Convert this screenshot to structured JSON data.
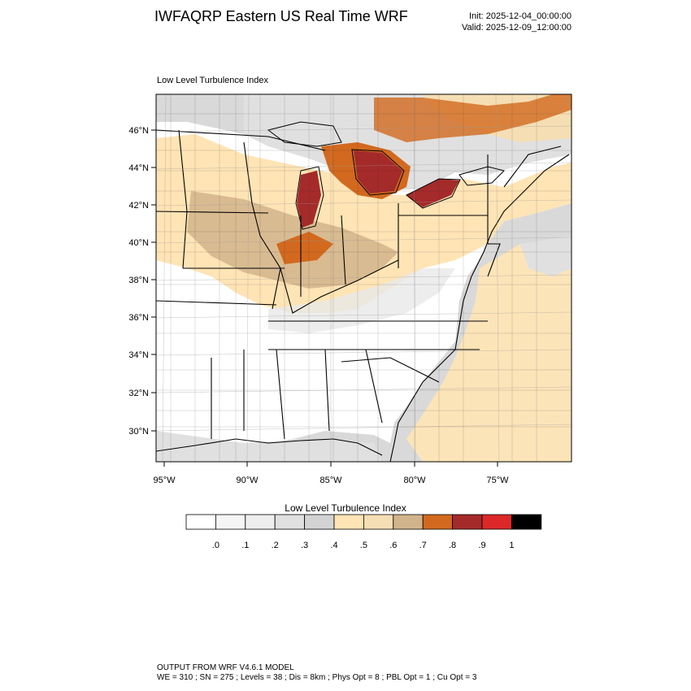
{
  "header": {
    "title": "IWFAQRP Eastern US Real Time WRF",
    "init": "Init: 2025-12-04_00:00:00",
    "valid": "Valid: 2025-12-09_12:00:00"
  },
  "plot": {
    "label": "Low Level Turbulence Index",
    "lat_labels": [
      "46°N",
      "44°N",
      "42°N",
      "40°N",
      "38°N",
      "36°N",
      "34°N",
      "32°N",
      "30°N"
    ],
    "lon_labels": [
      "95°W",
      "90°W",
      "85°W",
      "80°W",
      "75°W"
    ],
    "field_colors": {
      "water_low": "#d9d9d9",
      "land_low": "#ffffff",
      "mid": "#ffe4b5",
      "mid_high": "#d2b48c",
      "high": "#d2691e",
      "peak": "#a52a2a"
    }
  },
  "colorbar": {
    "title": "Low Level Turbulence Index",
    "ticks": [
      ".0",
      ".1",
      ".2",
      ".3",
      ".4",
      ".5",
      ".6",
      ".7",
      ".8",
      ".9",
      "1"
    ],
    "colors": [
      "#ffffff",
      "#f5f5f5",
      "#eeeeee",
      "#e0e0e0",
      "#d3d3d3",
      "#ffe4b5",
      "#f5deb3",
      "#d2b48c",
      "#d2691e",
      "#a52a2a",
      "#dc2828",
      "#000000"
    ]
  },
  "footer": {
    "line1": "OUTPUT FROM WRF V4.6.1 MODEL",
    "line2": "WE = 310 ; SN = 275 ; Levels = 38 ; Dis = 8km ; Phys Opt = 8 ; PBL Opt = 1 ; Cu Opt = 3"
  }
}
